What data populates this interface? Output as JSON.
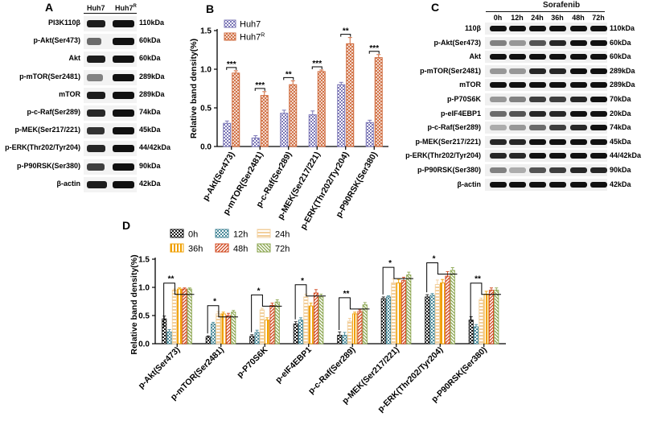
{
  "panels": {
    "a": "A",
    "b": "B",
    "c": "C",
    "d": "D"
  },
  "panel_a": {
    "lane_labels": [
      "Huh7",
      "Huh7"
    ],
    "lane2_superscript": "R",
    "rows": [
      {
        "protein": "PI3K110β",
        "kda": "110kDa"
      },
      {
        "protein": "p-Akt(Ser473)",
        "kda": "60kDa"
      },
      {
        "protein": "Akt",
        "kda": "60kDa"
      },
      {
        "protein": "p-mTOR(Ser2481)",
        "kda": "289kDa"
      },
      {
        "protein": "mTOR",
        "kda": "289kDa"
      },
      {
        "protein": "p-c-Raf(Ser289)",
        "kda": "74kDa"
      },
      {
        "protein": "p-MEK(Ser217/221)",
        "kda": "45kDa"
      },
      {
        "protein": "p-ERK(Thr202/Tyr204)",
        "kda": "44/42kDa"
      },
      {
        "protein": "p-P90RSK(Ser380)",
        "kda": "90kDa"
      },
      {
        "protein": "β-actin",
        "kda": "42kDa"
      }
    ]
  },
  "panel_c": {
    "drug": "Sorafenib",
    "timepoints": [
      "0h",
      "12h",
      "24h",
      "36h",
      "48h",
      "72h"
    ],
    "rows": [
      {
        "protein": "110β",
        "kda": "110kDa"
      },
      {
        "protein": "p-Akt(Ser473)",
        "kda": "60kDa"
      },
      {
        "protein": "Akt",
        "kda": "60kDa"
      },
      {
        "protein": "p-mTOR(Ser2481)",
        "kda": "289kDa"
      },
      {
        "protein": "mTOR",
        "kda": "289kDa"
      },
      {
        "protein": "p-P70S6K",
        "kda": "70kDa"
      },
      {
        "protein": "p-eIF4EBP1",
        "kda": "20kDa"
      },
      {
        "protein": "p-c-Raf(Ser289)",
        "kda": "74kDa"
      },
      {
        "protein": "p-MEK(Ser217/221)",
        "kda": "45kDa"
      },
      {
        "protein": "p-ERK(Thr202/Tyr204)",
        "kda": "44/42kDa"
      },
      {
        "protein": "p-P90RSK(Ser380)",
        "kda": "90kDa"
      },
      {
        "protein": "β-actin",
        "kda": "42kDa"
      }
    ]
  },
  "chart_data": [
    {
      "id": "B",
      "type": "bar",
      "ylabel": "Relative band density(%)",
      "ylim": [
        0,
        1.5
      ],
      "yticks": [
        "0.0",
        "0.5",
        "1.0",
        "1.5"
      ],
      "categories": [
        "p-Akt(Ser473)",
        "p-mTOR(Ser2481)",
        "p-c-Raf(Ser289)",
        "p-MEK(Ser217/221)",
        "p-ERK(Thr202/Tyr204)",
        "p-P90RSK(Ser380)"
      ],
      "series": [
        {
          "name": "Huh7",
          "color": "#7b76b6",
          "values": [
            0.3,
            0.11,
            0.43,
            0.41,
            0.8,
            0.31
          ],
          "errors": [
            0.03,
            0.03,
            0.04,
            0.05,
            0.03,
            0.03
          ]
        },
        {
          "name": "Huh7",
          "superscript": "R",
          "color": "#cf6a3c",
          "values": [
            0.95,
            0.66,
            0.8,
            0.97,
            1.33,
            1.15
          ],
          "errors": [
            0.03,
            0.05,
            0.05,
            0.02,
            0.08,
            0.04
          ]
        }
      ],
      "significance": [
        "***",
        "***",
        "**",
        "***",
        "**",
        "***"
      ],
      "legend_position": "top-left"
    },
    {
      "id": "D",
      "type": "bar",
      "ylabel": "Relative band density(%)",
      "ylim": [
        0,
        1.5
      ],
      "yticks": [
        "0.0",
        "0.5",
        "1.0",
        "1.5"
      ],
      "categories": [
        "p-Akt(Ser473)",
        "p-mTOR(Ser2481)",
        "p-P70S6K",
        "p-eIF4EBP1",
        "p-c-Raf(Ser289)",
        "p-MEK(Ser217/221)",
        "p-ERK(Thr202/Tyr204)",
        "p-P90RSK(Ser380)"
      ],
      "series": [
        {
          "name": "0h",
          "color": "#1a1a1a",
          "values": [
            0.44,
            0.12,
            0.13,
            0.35,
            0.15,
            0.8,
            0.83,
            0.42
          ],
          "errors": [
            0.05,
            0.02,
            0.03,
            0.04,
            0.06,
            0.03,
            0.04,
            0.06
          ]
        },
        {
          "name": "12h",
          "color": "#4a8a9a",
          "values": [
            0.21,
            0.35,
            0.2,
            0.42,
            0.15,
            0.83,
            0.86,
            0.3
          ],
          "errors": [
            0.04,
            0.03,
            0.04,
            0.04,
            0.05,
            0.02,
            0.03,
            0.04
          ]
        },
        {
          "name": "24h",
          "color": "#f2cf9c",
          "values": [
            0.95,
            0.53,
            0.6,
            0.83,
            0.4,
            1.08,
            1.05,
            0.78
          ],
          "errors": [
            0.02,
            0.04,
            0.03,
            0.05,
            0.05,
            0.07,
            0.08,
            0.03
          ]
        },
        {
          "name": "36h",
          "color": "#f0a000",
          "values": [
            0.97,
            0.53,
            0.42,
            0.67,
            0.53,
            1.08,
            1.08,
            0.88
          ],
          "errors": [
            0.02,
            0.03,
            0.04,
            0.05,
            0.03,
            0.06,
            0.06,
            0.05
          ]
        },
        {
          "name": "48h",
          "color": "#d0451b",
          "values": [
            0.97,
            0.5,
            0.68,
            0.9,
            0.57,
            1.12,
            1.2,
            0.95
          ],
          "errors": [
            0.02,
            0.04,
            0.04,
            0.06,
            0.03,
            0.06,
            0.08,
            0.04
          ]
        },
        {
          "name": "72h",
          "color": "#8aa54e",
          "values": [
            0.97,
            0.56,
            0.74,
            0.83,
            0.69,
            1.22,
            1.3,
            0.95
          ],
          "errors": [
            0.02,
            0.03,
            0.04,
            0.05,
            0.04,
            0.05,
            0.05,
            0.04
          ]
        }
      ],
      "significance": [
        "**",
        "*",
        "*",
        "*",
        "**",
        "*",
        "*",
        "**"
      ],
      "legend_position": "top-left"
    }
  ]
}
